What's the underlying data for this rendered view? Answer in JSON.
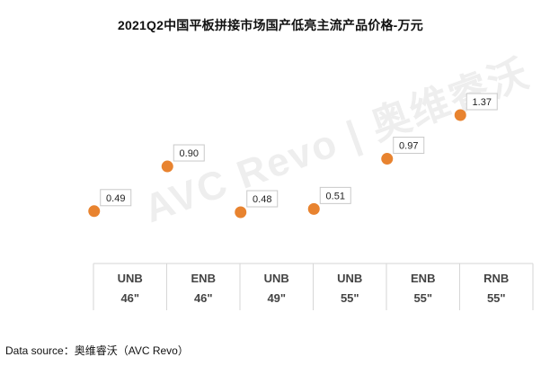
{
  "title": "2021Q2中国平板拼接市场国产低亮主流产品价格-万元",
  "source": "Data source：奥维睿沃（AVC Revo）",
  "watermark": "AVC Revo | 奥维睿沃",
  "colors": {
    "dot": "#e8832f",
    "label_border": "#c9c9c9",
    "axis_line": "#d6d6d6",
    "tick_text": "#444444"
  },
  "chart_data": {
    "type": "scatter",
    "title": "2021Q2中国平板拼接市场国产低亮主流产品价格-万元",
    "categories": [
      {
        "line1": "UNB",
        "line2": "46\""
      },
      {
        "line1": "ENB",
        "line2": "46\""
      },
      {
        "line1": "UNB",
        "line2": "49\""
      },
      {
        "line1": "UNB",
        "line2": "55\""
      },
      {
        "line1": "ENB",
        "line2": "55\""
      },
      {
        "line1": "RNB",
        "line2": "55\""
      }
    ],
    "values": [
      0.49,
      0.9,
      0.48,
      0.51,
      0.97,
      1.37
    ],
    "value_labels": [
      "0.49",
      "0.90",
      "0.48",
      "0.51",
      "0.97",
      "1.37"
    ],
    "grid": false,
    "legend": "none"
  }
}
